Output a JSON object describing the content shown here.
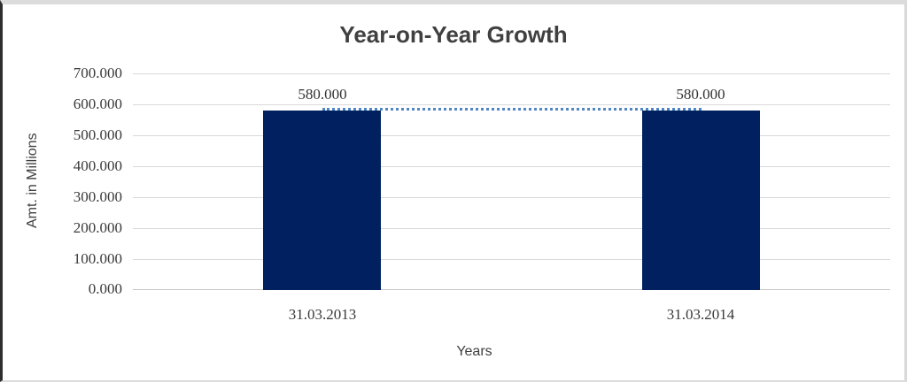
{
  "chart_data": {
    "type": "bar",
    "title": "Year-on-Year Growth",
    "xlabel": "Years",
    "ylabel": "Amt. in Millions",
    "categories": [
      "31.03.2013",
      "31.03.2014"
    ],
    "series": [
      {
        "name": "amount-bars",
        "type": "bar",
        "values": [
          580,
          580
        ],
        "data_labels": [
          "580.000",
          "580.000"
        ],
        "color": "#002060"
      },
      {
        "name": "trend-connector",
        "type": "line",
        "line_style": "dotted",
        "values": [
          580,
          580
        ],
        "color": "#4f86c6"
      }
    ],
    "ylim": [
      0,
      700
    ],
    "ytick_labels_top_to_bottom": [
      "700.000",
      "600.000",
      "500.000",
      "400.000",
      "300.000",
      "200.000",
      "100.000",
      "0.000"
    ],
    "ytick_values": [
      700,
      600,
      500,
      400,
      300,
      200,
      100,
      0
    ],
    "grid": "horizontal",
    "legend": "none",
    "colors": {
      "gridline": "#d9d9d9",
      "axis_line": "#c8c8c8",
      "title_text": "#404040",
      "tick_text": "#3a3a3a",
      "bar_fill": "#002060",
      "dotted_line": "#4f86c6"
    }
  }
}
